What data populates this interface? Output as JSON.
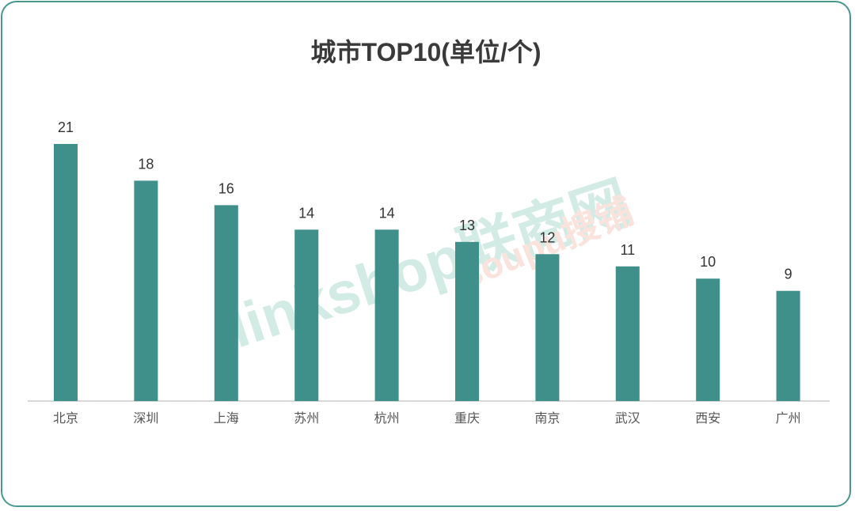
{
  "chart_data": {
    "type": "bar",
    "title": "城市TOP10(单位/个)",
    "categories": [
      "北京",
      "深圳",
      "上海",
      "苏州",
      "杭州",
      "重庆",
      "南京",
      "武汉",
      "西安",
      "广州"
    ],
    "values": [
      21,
      18,
      16,
      14,
      14,
      13,
      12,
      11,
      10,
      9
    ],
    "xlabel": "",
    "ylabel": "",
    "ylim": [
      0,
      21
    ],
    "grid": false,
    "bar_color": "#3f8f8a"
  },
  "watermarks": {
    "linkshop": "linkshop联商网",
    "soupu": "soupu搜铺"
  }
}
